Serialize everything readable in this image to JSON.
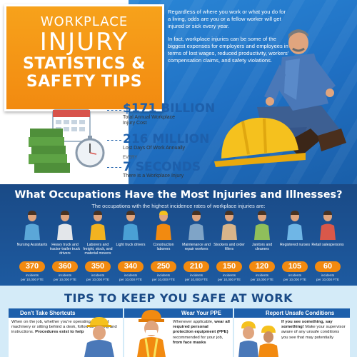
{
  "hero": {
    "title_line1": "WORKPLACE",
    "title_line2": "INJURY",
    "title_line3": "STATISTICS &",
    "title_line4": "SAFETY TIPS",
    "paragraph1": "Regardless of where you work or what you do for a living, odds are you or a fellow worker will get injured or sick every year.",
    "paragraph2": "In fact, workplace injuries can be some of the biggest expenses for employers and employees in terms of lost wages, reduced productivity, workers' compensation claims, and safety violations.",
    "colors": {
      "orange": "#f28a10",
      "blue": "#1d5fab",
      "navy": "#1a4a86"
    }
  },
  "stats": [
    {
      "value": "$171 BILLION",
      "label_line1": "Total Annual Workplace",
      "label_line2": "Injury Cost"
    },
    {
      "value": "216 MILLION",
      "label_line1": "Lost Days Of Work Annually",
      "label_line2": ""
    },
    {
      "prefix": "EVERY",
      "value": "7 SECONDS",
      "label_line1": "There is a Workplace Injury",
      "label_line2": ""
    }
  ],
  "occupations": {
    "title": "What Occupations Have the Most Injuries and Illnesses?",
    "subtitle": "The occupations with the highest incidence rates of workplace injuries are:",
    "unit_line1": "incidents",
    "unit_line2": "per 10,000 FTE",
    "items": [
      {
        "label": "Nursing Assistants",
        "value": "370",
        "icon": "nurse-figure",
        "color": "#5ba7d8"
      },
      {
        "label": "Heavy truck and tractor-trailer truck drivers",
        "value": "360",
        "icon": "truck-driver-figure",
        "color": "#e3e6ea"
      },
      {
        "label": "Laborers and freight, stock, and material movers",
        "value": "350",
        "icon": "worker-figure",
        "color": "#f2b320"
      },
      {
        "label": "Light truck drivers",
        "value": "340",
        "icon": "driver-figure",
        "color": "#4aa0d5"
      },
      {
        "label": "Construction laborers",
        "value": "250",
        "icon": "construction-figure",
        "color": "#f28a10"
      },
      {
        "label": "Maintenance and repair workers",
        "value": "210",
        "icon": "repair-figure",
        "color": "#7fa4c7"
      },
      {
        "label": "Stockers and order fillers",
        "value": "150",
        "icon": "stocker-figure",
        "color": "#d9b58a"
      },
      {
        "label": "Janitors and cleaners",
        "value": "120",
        "icon": "janitor-figure",
        "color": "#8fbf5b"
      },
      {
        "label": "Registered nurses",
        "value": "105",
        "icon": "rn-figure",
        "color": "#6fb6e6"
      },
      {
        "label": "Retail salespersons",
        "value": "60",
        "icon": "retail-figure",
        "color": "#d9584a"
      }
    ]
  },
  "tips": {
    "title": "TIPS TO KEEP YOU SAFE AT WORK",
    "cards": [
      {
        "heading": "Don't Take Shortcuts",
        "body": "When on the job, whether you're operating tools and machinery or sitting behind a desk, follow all training and instructions.",
        "body_bold": "Procedures exist to help"
      },
      {
        "heading": "Wear Your PPE",
        "body": "Whenever applicable, ",
        "body_bold": "wear all required personal protection equipment (PPE)",
        "body_tail": " recommended for your job, ",
        "body_bold2": "from face masks"
      },
      {
        "heading": "Report Unsafe Conditions",
        "body_bold": "If you see something, say something!",
        "body": " Make your supervisor aware of any unsafe conditions you see that may potentially"
      }
    ]
  }
}
